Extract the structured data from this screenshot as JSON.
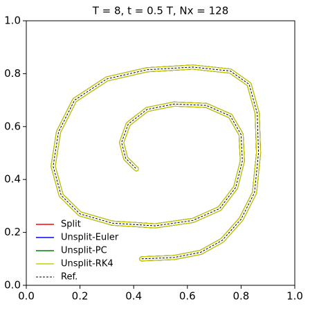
{
  "chart_data": {
    "type": "line",
    "title": "T = 8, t = 0.5 T, Nx = 128",
    "x": [
      0.43,
      0.55,
      0.65,
      0.73,
      0.8,
      0.85,
      0.865,
      0.86,
      0.83,
      0.76,
      0.62,
      0.45,
      0.3,
      0.18,
      0.12,
      0.1,
      0.13,
      0.2,
      0.32,
      0.48,
      0.62,
      0.72,
      0.78,
      0.805,
      0.8,
      0.76,
      0.67,
      0.55,
      0.45,
      0.38,
      0.355,
      0.37,
      0.4,
      0.41
    ],
    "series": [
      {
        "name": "Split",
        "color": "#ff0000",
        "style": "solid",
        "values": [
          0.1,
          0.105,
          0.125,
          0.17,
          0.25,
          0.35,
          0.5,
          0.65,
          0.76,
          0.81,
          0.825,
          0.815,
          0.78,
          0.7,
          0.58,
          0.45,
          0.34,
          0.27,
          0.235,
          0.225,
          0.245,
          0.29,
          0.37,
          0.47,
          0.57,
          0.64,
          0.68,
          0.685,
          0.665,
          0.61,
          0.54,
          0.48,
          0.45,
          0.44
        ]
      },
      {
        "name": "Unsplit-Euler",
        "color": "#0000ff",
        "style": "solid",
        "values": [
          0.1,
          0.105,
          0.125,
          0.17,
          0.25,
          0.35,
          0.5,
          0.65,
          0.76,
          0.81,
          0.825,
          0.815,
          0.78,
          0.7,
          0.58,
          0.45,
          0.34,
          0.27,
          0.235,
          0.225,
          0.245,
          0.29,
          0.37,
          0.47,
          0.57,
          0.64,
          0.68,
          0.685,
          0.665,
          0.61,
          0.54,
          0.48,
          0.45,
          0.44
        ]
      },
      {
        "name": "Unsplit-PC",
        "color": "#008000",
        "style": "solid",
        "values": [
          0.1,
          0.105,
          0.125,
          0.17,
          0.25,
          0.35,
          0.5,
          0.65,
          0.76,
          0.81,
          0.825,
          0.815,
          0.78,
          0.7,
          0.58,
          0.45,
          0.34,
          0.27,
          0.235,
          0.225,
          0.245,
          0.29,
          0.37,
          0.47,
          0.57,
          0.64,
          0.68,
          0.685,
          0.665,
          0.61,
          0.54,
          0.48,
          0.45,
          0.44
        ]
      },
      {
        "name": "Unsplit-RK4",
        "color": "#cccc00",
        "style": "solid",
        "values": [
          0.1,
          0.105,
          0.125,
          0.17,
          0.25,
          0.35,
          0.5,
          0.65,
          0.76,
          0.81,
          0.825,
          0.815,
          0.78,
          0.7,
          0.58,
          0.45,
          0.34,
          0.27,
          0.235,
          0.225,
          0.245,
          0.29,
          0.37,
          0.47,
          0.57,
          0.64,
          0.68,
          0.685,
          0.665,
          0.61,
          0.54,
          0.48,
          0.45,
          0.44
        ]
      },
      {
        "name": "Ref.",
        "color": "#000000",
        "style": "dashed",
        "values": [
          0.1,
          0.105,
          0.125,
          0.17,
          0.25,
          0.35,
          0.5,
          0.65,
          0.76,
          0.81,
          0.825,
          0.815,
          0.78,
          0.7,
          0.58,
          0.45,
          0.34,
          0.27,
          0.235,
          0.225,
          0.245,
          0.29,
          0.37,
          0.47,
          0.57,
          0.64,
          0.68,
          0.685,
          0.665,
          0.61,
          0.54,
          0.48,
          0.45,
          0.44
        ]
      }
    ],
    "xlim": [
      0,
      1
    ],
    "ylim": [
      0,
      1
    ],
    "xticks": [
      {
        "value": 0,
        "label": "0.0"
      },
      0.2,
      0.4,
      0.6,
      0.8,
      {
        "value": 1,
        "label": "1.0"
      }
    ],
    "yticks": [
      {
        "value": 0,
        "label": "0.0"
      },
      0.2,
      0.4,
      0.6,
      0.8,
      {
        "value": 1,
        "label": "1.0"
      }
    ],
    "legend": "lower left"
  }
}
